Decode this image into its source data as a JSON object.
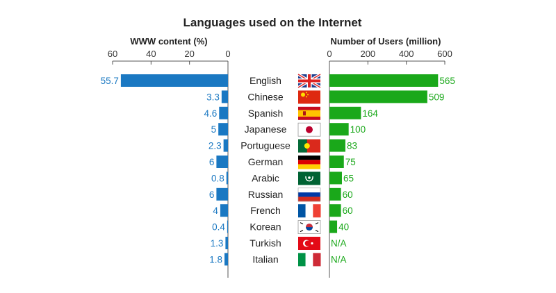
{
  "chart_data": {
    "type": "bar",
    "title": "Languages used on the Internet",
    "categories": [
      "English",
      "Chinese",
      "Spanish",
      "Japanese",
      "Portuguese",
      "German",
      "Arabic",
      "Russian",
      "French",
      "Korean",
      "Turkish",
      "Italian"
    ],
    "flags": [
      "uk",
      "china",
      "spain",
      "japan",
      "portugal",
      "germany",
      "arabic",
      "russia",
      "france",
      "korea",
      "turkey",
      "italy"
    ],
    "left_panel": {
      "title": "WWW content (%)",
      "ticks": [
        60,
        40,
        20,
        0
      ],
      "xlim": [
        60,
        0
      ],
      "color": "#1a78c2",
      "series": [
        {
          "values": [
            55.7,
            3.3,
            4.6,
            5,
            2.3,
            6,
            0.8,
            6,
            4,
            0.4,
            1.3,
            1.8
          ],
          "labels": [
            "55.7",
            "3.3",
            "4.6",
            "5",
            "2.3",
            "6",
            "0.8",
            "6",
            "4",
            "0.4",
            "1.3",
            "1.8"
          ]
        }
      ]
    },
    "right_panel": {
      "title": "Number of Users (million)",
      "ticks": [
        0,
        200,
        400,
        600
      ],
      "xlim": [
        0,
        600
      ],
      "color": "#1aa81a",
      "series": [
        {
          "values": [
            565,
            509,
            164,
            100,
            83,
            75,
            65,
            60,
            60,
            40,
            null,
            null
          ],
          "labels": [
            "565",
            "509",
            "164",
            "100",
            "83",
            "75",
            "65",
            "60",
            "60",
            "40",
            "N/A",
            "N/A"
          ]
        }
      ]
    },
    "grid": false,
    "legend": "none"
  }
}
